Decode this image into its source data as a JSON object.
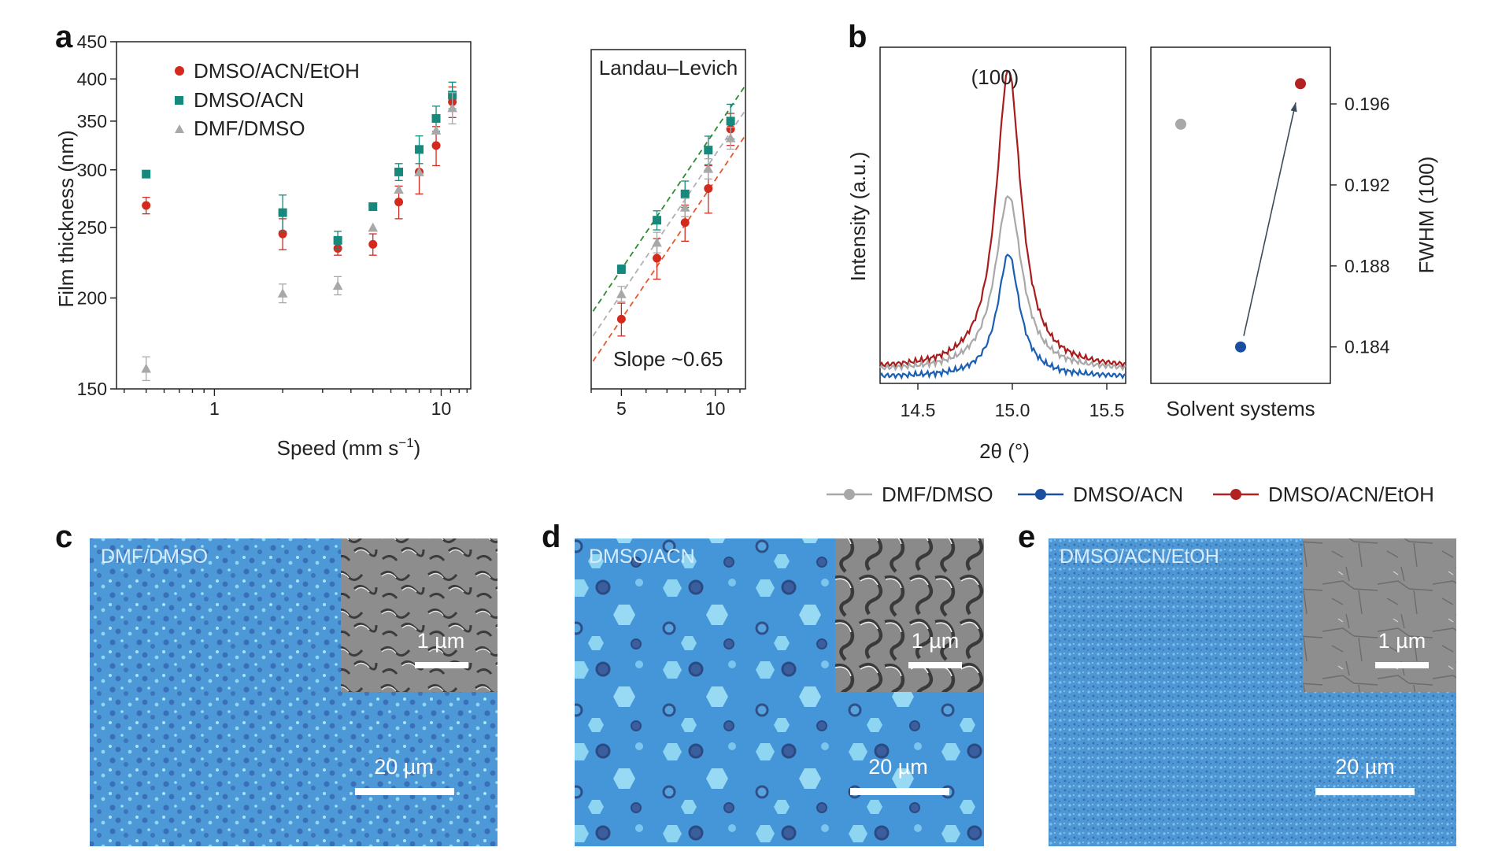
{
  "panels": {
    "a": "a",
    "b": "b",
    "c": "c",
    "d": "d",
    "e": "e"
  },
  "chart_data": [
    {
      "id": "a-main",
      "type": "scatter",
      "xlabel": "Speed (mm s",
      "xlabel_sup": "−1",
      "xlabel_close": ")",
      "ylabel": "Film thickness (nm)",
      "xscale": "log",
      "yscale": "log",
      "xlim": [
        0.37,
        13.5
      ],
      "ylim": [
        150,
        450
      ],
      "xticks": [
        {
          "v": 1,
          "label": "1"
        },
        {
          "v": 10,
          "label": "10"
        }
      ],
      "yticks": [
        {
          "v": 150,
          "label": "150"
        },
        {
          "v": 200,
          "label": "200"
        },
        {
          "v": 250,
          "label": "250"
        },
        {
          "v": 300,
          "label": "300"
        },
        {
          "v": 350,
          "label": "350"
        },
        {
          "v": 400,
          "label": "400"
        },
        {
          "v": 450,
          "label": "450"
        }
      ],
      "legend_position": "top-left",
      "series": [
        {
          "name": "DMSO/ACN/EtOH",
          "color": "#d42a1e",
          "marker": "circle",
          "points": [
            [
              0.5,
              268,
              7
            ],
            [
              2.0,
              245,
              12
            ],
            [
              3.5,
              234,
              5
            ],
            [
              5.0,
              237,
              8
            ],
            [
              6.5,
              271,
              14
            ],
            [
              8.0,
              298,
              20
            ],
            [
              9.5,
              324,
              20
            ],
            [
              11.2,
              372,
              18
            ]
          ]
        },
        {
          "name": "DMSO/ACN",
          "color": "#16897c",
          "marker": "square",
          "points": [
            [
              0.5,
              296,
              0
            ],
            [
              2.0,
              262,
              15
            ],
            [
              3.5,
              240,
              7
            ],
            [
              5.0,
              267,
              0
            ],
            [
              6.5,
              298,
              8
            ],
            [
              8.0,
              320,
              14
            ],
            [
              9.5,
              353,
              14
            ],
            [
              11.2,
              380,
              16
            ]
          ]
        },
        {
          "name": "DMF/DMSO",
          "color": "#a8a8a8",
          "marker": "triangle",
          "points": [
            [
              0.5,
              160,
              6
            ],
            [
              2.0,
              203,
              6
            ],
            [
              3.5,
              208,
              6
            ],
            [
              5.0,
              250,
              0
            ],
            [
              6.5,
              282,
              0
            ],
            [
              8.0,
              298,
              0
            ],
            [
              9.5,
              340,
              0
            ],
            [
              11.2,
              365,
              18
            ]
          ]
        }
      ]
    },
    {
      "id": "a-inset",
      "type": "scatter",
      "title": "Landau–Levich",
      "annotation": "Slope  ~0.65",
      "xscale": "log",
      "yscale": "log",
      "xlim": [
        4.0,
        12.5
      ],
      "ylim": [
        150,
        450
      ],
      "xticks": [
        {
          "v": 5,
          "label": "5"
        },
        {
          "v": 10,
          "label": "10"
        }
      ],
      "slope": 0.65,
      "series": [
        {
          "name": "DMSO/ACN/EtOH",
          "color": "#d42a1e",
          "marker": "circle",
          "fit_color": "#e4572e",
          "points": [
            [
              5.0,
              188,
              10
            ],
            [
              6.5,
              229,
              15
            ],
            [
              8.0,
              257,
              15
            ],
            [
              9.5,
              287,
              22
            ],
            [
              11.2,
              348,
              18
            ]
          ]
        },
        {
          "name": "DMSO/ACN",
          "color": "#16897c",
          "marker": "square",
          "fit_color": "#2e8b2e",
          "points": [
            [
              5.0,
              221,
              3
            ],
            [
              6.5,
              259,
              8
            ],
            [
              8.0,
              282,
              12
            ],
            [
              9.5,
              325,
              15
            ],
            [
              11.2,
              357,
              20
            ]
          ]
        },
        {
          "name": "DMF/DMSO",
          "color": "#a8a8a8",
          "marker": "triangle",
          "fit_color": "#b0b0b0",
          "points": [
            [
              5.0,
              204,
              5
            ],
            [
              6.5,
              241,
              8
            ],
            [
              8.0,
              270,
              8
            ],
            [
              9.5,
              306,
              10
            ],
            [
              11.2,
              338,
              12
            ]
          ]
        }
      ]
    },
    {
      "id": "b-xrd",
      "type": "line",
      "xlabel": "2θ (°)",
      "ylabel": "Intensity (a.u.)",
      "peak_label": "(100)",
      "xlim": [
        14.3,
        15.6
      ],
      "ylim": [
        0,
        1.0
      ],
      "xticks": [
        {
          "v": 14.5,
          "label": "14.5"
        },
        {
          "v": 15.0,
          "label": "15.0"
        },
        {
          "v": 15.5,
          "label": "15.5"
        }
      ],
      "series": [
        {
          "name": "DMSO/ACN/EtOH",
          "color": "#a81c1c",
          "peak": 0.96,
          "width": 0.08,
          "base": 0.035
        },
        {
          "name": "DMF/DMSO",
          "color": "#a8a8a8",
          "peak": 0.57,
          "width": 0.085,
          "base": 0.03
        },
        {
          "name": "DMSO/ACN",
          "color": "#1a5fb4",
          "peak": 0.39,
          "width": 0.07,
          "base": 0.01
        }
      ]
    },
    {
      "id": "b-fwhm",
      "type": "scatter",
      "xlabel": "Solvent systems",
      "ylabel": "FWHM (100)",
      "ylim": [
        0.1822,
        0.1988
      ],
      "yticks": [
        {
          "v": 0.184,
          "label": "0.184"
        },
        {
          "v": 0.188,
          "label": "0.188"
        },
        {
          "v": 0.192,
          "label": "0.192"
        },
        {
          "v": 0.196,
          "label": "0.196"
        }
      ],
      "points": [
        {
          "name": "DMF/DMSO",
          "x": 1,
          "y": 0.195,
          "color": "#a8a8a8"
        },
        {
          "name": "DMSO/ACN",
          "x": 2,
          "y": 0.184,
          "color": "#1a4fa0"
        },
        {
          "name": "DMSO/ACN/EtOH",
          "x": 3,
          "y": 0.197,
          "color": "#b22222"
        }
      ]
    }
  ],
  "legend_b": [
    {
      "name": "DMF/DMSO",
      "color": "#a8a8a8"
    },
    {
      "name": "DMSO/ACN",
      "color": "#1a4fa0"
    },
    {
      "name": "DMSO/ACN/EtOH",
      "color": "#b22222"
    }
  ],
  "micrographs": [
    {
      "panel": "c",
      "label": "DMF/DMSO",
      "main_scale": "20 µm",
      "inset_scale": "1 µm"
    },
    {
      "panel": "d",
      "label": "DMSO/ACN",
      "main_scale": "20 µm",
      "inset_scale": "1 µm"
    },
    {
      "panel": "e",
      "label": "DMSO/ACN/EtOH",
      "main_scale": "20 µm",
      "inset_scale": "1 µm"
    }
  ]
}
